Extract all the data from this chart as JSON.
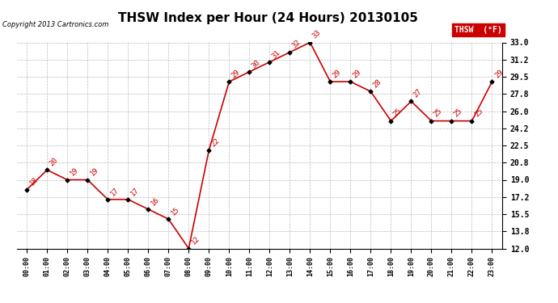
{
  "title": "THSW Index per Hour (24 Hours) 20130105",
  "copyright": "Copyright 2013 Cartronics.com",
  "hours": [
    "00:00",
    "01:00",
    "02:00",
    "03:00",
    "04:00",
    "05:00",
    "06:00",
    "07:00",
    "08:00",
    "09:00",
    "10:00",
    "11:00",
    "12:00",
    "13:00",
    "14:00",
    "15:00",
    "16:00",
    "17:00",
    "18:00",
    "19:00",
    "20:00",
    "21:00",
    "22:00",
    "23:00"
  ],
  "values": [
    18,
    20,
    19,
    19,
    17,
    17,
    16,
    15,
    12,
    22,
    29,
    30,
    31,
    32,
    33,
    29,
    29,
    28,
    25,
    27,
    25,
    25,
    25,
    29
  ],
  "ylim": [
    12.0,
    33.0
  ],
  "yticks": [
    12.0,
    13.8,
    15.5,
    17.2,
    19.0,
    20.8,
    22.5,
    24.2,
    26.0,
    27.8,
    29.5,
    31.2,
    33.0
  ],
  "line_color": "#cc0000",
  "marker_color": "#000000",
  "label_color": "#cc0000",
  "bg_color": "#ffffff",
  "grid_color": "#bbbbbb",
  "title_fontsize": 11,
  "legend_bg": "#cc0000",
  "legend_text": "THSW  (°F)"
}
